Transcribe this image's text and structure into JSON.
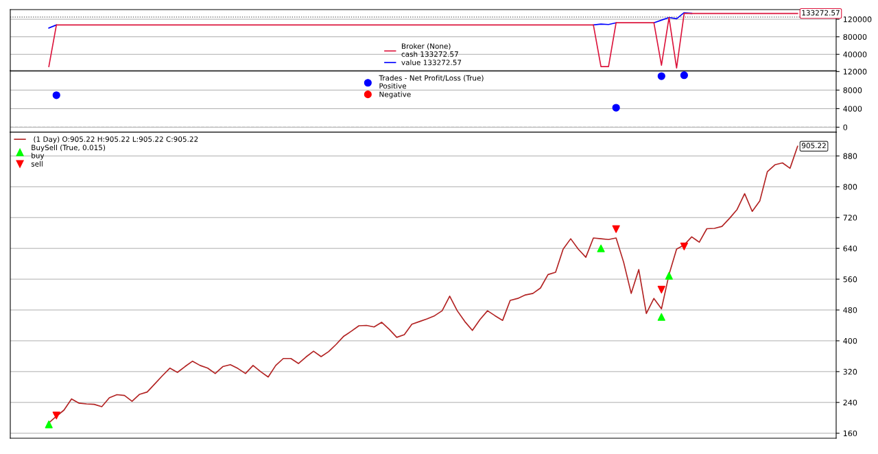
{
  "chart_data": [
    {
      "type": "line",
      "legend": "bottom",
      "grid": "y",
      "tick_labels": "y",
      "categories": [
        null,
        null,
        null,
        null,
        null,
        null,
        null,
        null,
        null,
        null,
        null,
        null,
        null,
        null,
        null,
        null,
        null,
        null,
        null,
        null,
        null,
        null,
        null,
        null,
        null,
        null,
        null,
        null,
        null,
        null,
        null,
        null,
        null,
        null,
        null,
        null,
        null,
        null,
        null,
        null,
        null,
        null,
        null,
        null,
        null,
        null,
        null,
        null,
        null,
        null,
        null,
        null,
        null,
        null,
        null,
        null,
        null,
        null,
        null,
        null,
        null,
        null,
        null,
        null,
        null,
        null,
        null,
        null,
        null,
        null,
        null,
        null,
        null,
        null,
        null,
        null,
        null,
        null,
        null,
        null,
        null,
        null,
        null,
        null,
        null,
        null,
        null,
        null,
        null,
        null,
        null,
        null,
        null,
        null,
        null,
        null,
        null,
        null,
        null,
        null
      ],
      "ylim": [
        2400,
        142000
      ],
      "yticks": [
        40000,
        80000,
        120000
      ],
      "ref_lines": [
        {
          "axis": "y",
          "value": 125000,
          "color": "#555555",
          "line_style": "dotted"
        }
      ],
      "annotations": [
        "133272.57"
      ],
      "series": [
        {
          "name": "Broker (None)\ncash 133272.57",
          "color": "#dc143c",
          "values": [
            12000,
            107000,
            107000,
            107000,
            107000,
            107000,
            107000,
            107000,
            107000,
            107000,
            107000,
            107000,
            107000,
            107000,
            107000,
            107000,
            107000,
            107000,
            107000,
            107000,
            107000,
            107000,
            107000,
            107000,
            107000,
            107000,
            107000,
            107000,
            107000,
            107000,
            107000,
            107000,
            107000,
            107000,
            107000,
            107000,
            107000,
            107000,
            107000,
            107000,
            107000,
            107000,
            107000,
            107000,
            107000,
            107000,
            107000,
            107000,
            107000,
            107000,
            107000,
            107000,
            107000,
            107000,
            107000,
            107000,
            107000,
            107000,
            107000,
            107000,
            107000,
            107000,
            107000,
            107000,
            107000,
            107000,
            107000,
            107000,
            107000,
            107000,
            107000,
            107000,
            107000,
            12000,
            12000,
            112000,
            112000,
            112000,
            112000,
            112000,
            112000,
            15000,
            124000,
            9000,
            133272.57,
            133272.57,
            133272.57,
            133272.57,
            133272.57,
            133272.57,
            133272.57,
            133272.57,
            133272.57,
            133272.57,
            133272.57,
            133272.57,
            133272.57,
            133272.57,
            133272.57,
            133272.57
          ]
        },
        {
          "name": "value 133272.57",
          "color": "#0000ff",
          "values": [
            100000,
            107000,
            null,
            null,
            null,
            null,
            null,
            null,
            null,
            null,
            null,
            null,
            null,
            null,
            null,
            null,
            null,
            null,
            null,
            null,
            null,
            null,
            null,
            null,
            null,
            null,
            null,
            null,
            null,
            null,
            null,
            null,
            null,
            null,
            null,
            null,
            null,
            null,
            null,
            null,
            null,
            null,
            null,
            null,
            null,
            null,
            null,
            null,
            null,
            null,
            null,
            null,
            null,
            null,
            null,
            null,
            null,
            null,
            null,
            null,
            null,
            null,
            null,
            null,
            null,
            null,
            null,
            null,
            null,
            null,
            null,
            null,
            107000,
            109000,
            108000,
            112000,
            null,
            null,
            null,
            null,
            112000,
            118000,
            124000,
            121000,
            135000,
            133272.57,
            null,
            null,
            null,
            null,
            null,
            null,
            null,
            null,
            null,
            null,
            null,
            null,
            null,
            null
          ]
        }
      ]
    },
    {
      "type": "scatter",
      "legend": "top",
      "grid": "y",
      "tick_labels": "y",
      "categories": [
        null,
        null,
        null,
        null,
        null,
        null,
        null,
        null,
        null,
        null,
        null,
        null,
        null,
        null,
        null,
        null,
        null,
        null,
        null,
        null,
        null,
        null,
        null,
        null,
        null,
        null,
        null,
        null,
        null,
        null,
        null,
        null,
        null,
        null,
        null,
        null,
        null,
        null,
        null,
        null,
        null,
        null,
        null,
        null,
        null,
        null,
        null,
        null,
        null,
        null,
        null,
        null,
        null,
        null,
        null,
        null,
        null,
        null,
        null,
        null,
        null,
        null,
        null,
        null,
        null,
        null,
        null,
        null,
        null,
        null,
        null,
        null,
        null,
        null,
        null,
        null,
        null,
        null,
        null,
        null,
        null,
        null,
        null,
        null,
        null,
        null,
        null,
        null,
        null,
        null,
        null,
        null,
        null,
        null,
        null,
        null,
        null,
        null,
        null,
        null
      ],
      "ylim": [
        -1050,
        12150
      ],
      "yticks": [
        0,
        4000,
        8000,
        12000
      ],
      "ref_lines": [
        {
          "axis": "y",
          "value": 0,
          "color": "#aaaaaa",
          "line_style": "dashed"
        }
      ],
      "series": [
        {
          "name": "Trades - Net Profit/Loss (True)\nPositive",
          "marker": "circle",
          "color": "#0000ff",
          "values": [
            null,
            6900,
            null,
            null,
            null,
            null,
            null,
            null,
            null,
            null,
            null,
            null,
            null,
            null,
            null,
            null,
            null,
            null,
            null,
            null,
            null,
            null,
            null,
            null,
            null,
            null,
            null,
            null,
            null,
            null,
            null,
            null,
            null,
            null,
            null,
            null,
            null,
            null,
            null,
            null,
            null,
            null,
            null,
            null,
            null,
            null,
            null,
            null,
            null,
            null,
            null,
            null,
            null,
            null,
            null,
            null,
            null,
            null,
            null,
            null,
            null,
            null,
            null,
            null,
            null,
            null,
            null,
            null,
            null,
            null,
            null,
            null,
            null,
            null,
            null,
            4200,
            null,
            null,
            null,
            null,
            null,
            11000,
            null,
            null,
            11200,
            null,
            null,
            null,
            null,
            null,
            null,
            null,
            null,
            null,
            null,
            null,
            null,
            null,
            null,
            null
          ]
        },
        {
          "name": "Negative",
          "marker": "circle",
          "color": "#ff0000",
          "values": [
            null,
            null,
            null,
            null,
            null,
            null,
            null,
            null,
            null,
            null,
            null,
            null,
            null,
            null,
            null,
            null,
            null,
            null,
            null,
            null,
            null,
            null,
            null,
            null,
            null,
            null,
            null,
            null,
            null,
            null,
            null,
            null,
            null,
            null,
            null,
            null,
            null,
            null,
            null,
            null,
            null,
            null,
            null,
            null,
            null,
            null,
            null,
            null,
            null,
            null,
            null,
            null,
            null,
            null,
            null,
            null,
            null,
            null,
            null,
            null,
            null,
            null,
            null,
            null,
            null,
            null,
            null,
            null,
            null,
            null,
            null,
            null,
            null,
            null,
            null,
            null,
            null,
            null,
            null,
            null,
            null,
            null,
            null,
            null,
            null,
            null,
            null,
            null,
            null,
            null,
            null,
            null,
            null,
            null,
            null,
            null,
            null,
            null,
            null,
            null
          ]
        }
      ]
    },
    {
      "type": "line",
      "legend": "top left",
      "grid": "y",
      "tick_labels": "y",
      "categories": [
        null,
        null,
        null,
        null,
        null,
        null,
        null,
        null,
        null,
        null,
        null,
        null,
        null,
        null,
        null,
        null,
        null,
        null,
        null,
        null,
        null,
        null,
        null,
        null,
        null,
        null,
        null,
        null,
        null,
        null,
        null,
        null,
        null,
        null,
        null,
        null,
        null,
        null,
        null,
        null,
        null,
        null,
        null,
        null,
        null,
        null,
        null,
        null,
        null,
        null,
        null,
        null,
        null,
        null,
        null,
        null,
        null,
        null,
        null,
        null,
        null,
        null,
        null,
        null,
        null,
        null,
        null,
        null,
        null,
        null,
        null,
        null,
        null,
        null,
        null,
        null,
        null,
        null,
        null,
        null,
        null,
        null,
        null,
        null,
        null,
        null,
        null,
        null,
        null,
        null,
        null,
        null,
        null,
        null,
        null,
        null,
        null,
        null,
        null,
        null
      ],
      "ylim": [
        147,
        942
      ],
      "yticks": [
        160,
        240,
        320,
        400,
        480,
        560,
        640,
        720,
        800,
        880
      ],
      "annotations": [
        "905.22"
      ],
      "series": [
        {
          "name": " (1 Day) O:905.22 H:905.22 L:905.22 C:905.22",
          "color": "#b22222",
          "values": [
            187,
            204,
            220,
            249,
            238,
            236,
            235,
            229,
            252,
            260,
            258,
            243,
            261,
            267,
            288,
            309,
            329,
            318,
            333,
            347,
            336,
            329,
            315,
            333,
            338,
            328,
            315,
            336,
            320,
            306,
            336,
            354,
            354,
            341,
            358,
            373,
            359,
            372,
            391,
            412,
            425,
            439,
            440,
            436,
            448,
            430,
            409,
            416,
            443,
            450,
            457,
            465,
            478,
            516,
            478,
            450,
            427,
            455,
            478,
            465,
            453,
            505,
            510,
            519,
            523,
            537,
            572,
            578,
            638,
            665,
            638,
            617,
            667,
            665,
            663,
            667,
            604,
            523,
            585,
            471,
            510,
            483,
            572,
            638,
            649,
            670,
            656,
            691,
            692,
            697,
            718,
            741,
            782,
            736,
            763,
            839,
            857,
            862,
            848,
            905.22
          ]
        },
        {
          "name": "BuySell (True, 0.015)\nbuy",
          "type": "scatter",
          "marker": "triangle",
          "color": "#00ff00",
          "values": [
            183,
            null,
            null,
            null,
            null,
            null,
            null,
            null,
            null,
            null,
            null,
            null,
            null,
            null,
            null,
            null,
            null,
            null,
            null,
            null,
            null,
            null,
            null,
            null,
            null,
            null,
            null,
            null,
            null,
            null,
            null,
            null,
            null,
            null,
            null,
            null,
            null,
            null,
            null,
            null,
            null,
            null,
            null,
            null,
            null,
            null,
            null,
            null,
            null,
            null,
            null,
            null,
            null,
            null,
            null,
            null,
            null,
            null,
            null,
            null,
            null,
            null,
            null,
            null,
            null,
            null,
            null,
            null,
            null,
            null,
            null,
            null,
            null,
            640,
            null,
            null,
            null,
            null,
            null,
            null,
            null,
            462,
            569,
            null,
            null,
            null,
            null,
            null,
            null,
            null,
            null,
            null,
            null,
            null,
            null,
            null,
            null,
            null,
            null,
            null
          ]
        },
        {
          "name": "sell",
          "type": "scatter",
          "marker": "triangle_down",
          "color": "#ff0000",
          "values": [
            null,
            206,
            null,
            null,
            null,
            null,
            null,
            null,
            null,
            null,
            null,
            null,
            null,
            null,
            null,
            null,
            null,
            null,
            null,
            null,
            null,
            null,
            null,
            null,
            null,
            null,
            null,
            null,
            null,
            null,
            null,
            null,
            null,
            null,
            null,
            null,
            null,
            null,
            null,
            null,
            null,
            null,
            null,
            null,
            null,
            null,
            null,
            null,
            null,
            null,
            null,
            null,
            null,
            null,
            null,
            null,
            null,
            null,
            null,
            null,
            null,
            null,
            null,
            null,
            null,
            null,
            null,
            null,
            null,
            null,
            null,
            null,
            null,
            null,
            null,
            690,
            null,
            null,
            null,
            null,
            null,
            533,
            null,
            null,
            645,
            null,
            null,
            null,
            null,
            null,
            null,
            null,
            null,
            null,
            null,
            null,
            null,
            null,
            null,
            null
          ]
        }
      ]
    }
  ]
}
